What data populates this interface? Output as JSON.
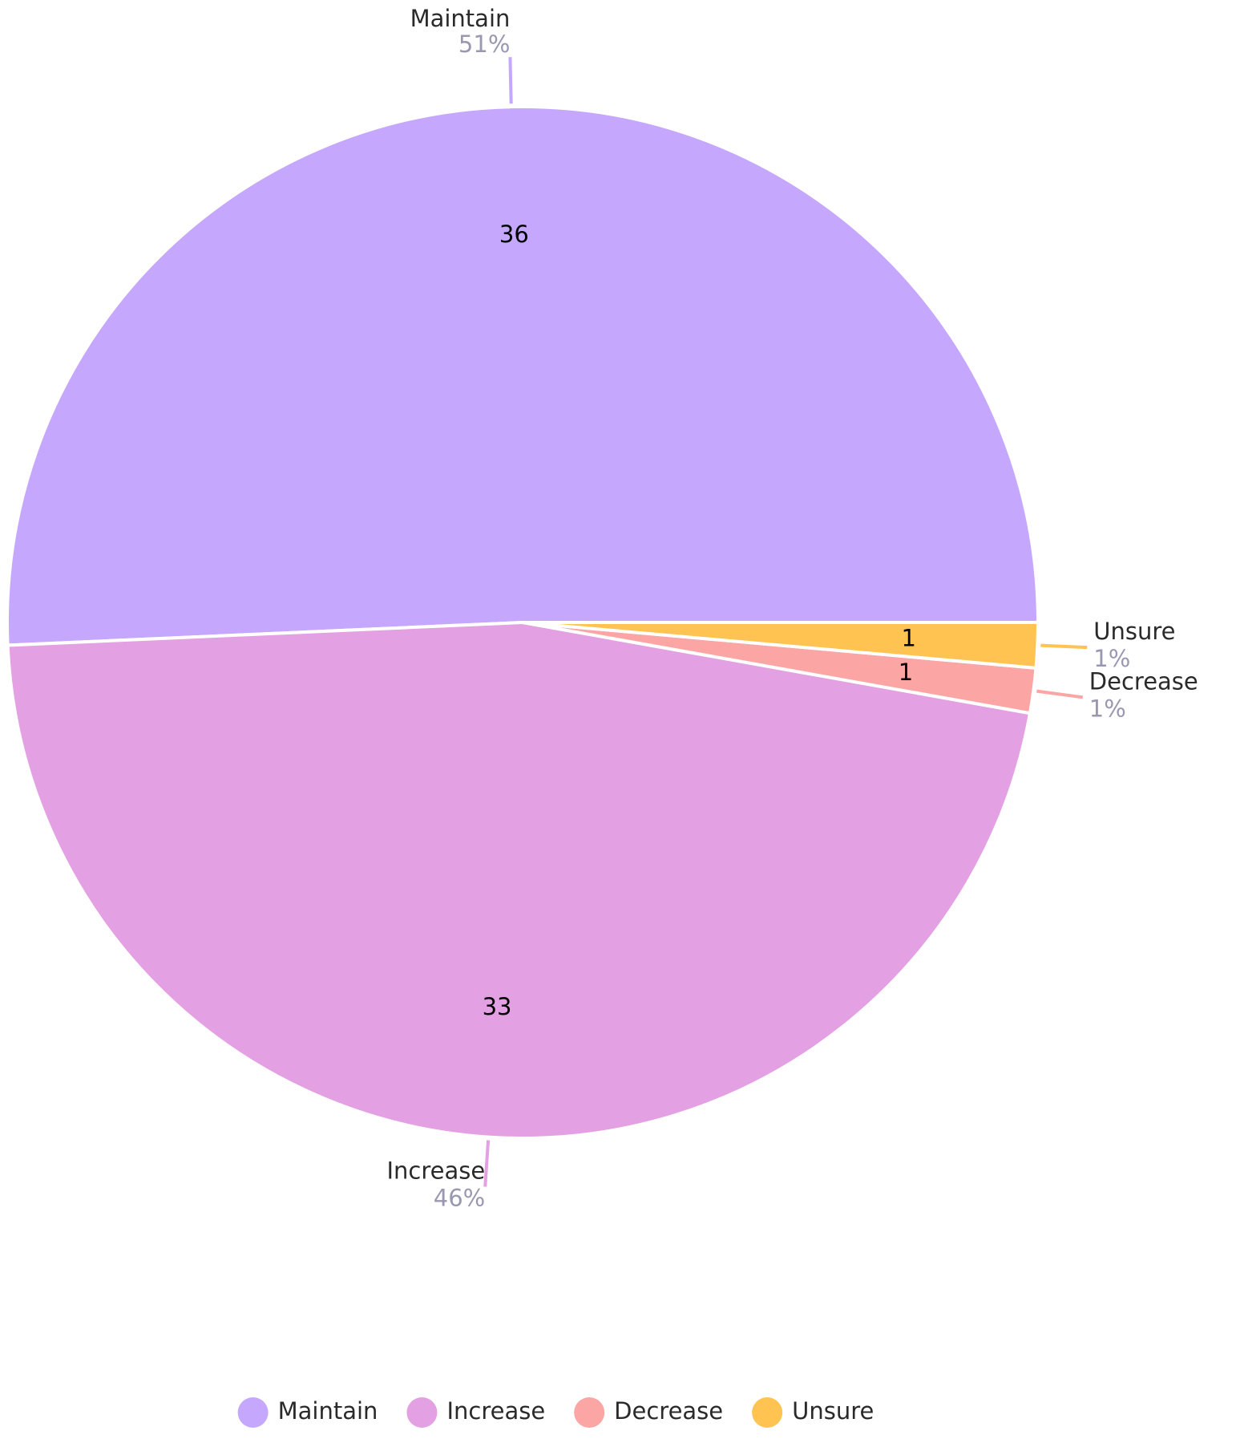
{
  "chart_data": {
    "type": "pie",
    "categories": [
      "Maintain",
      "Increase",
      "Decrease",
      "Unsure"
    ],
    "values": [
      36,
      33,
      1,
      1
    ],
    "percent_labels": [
      "51%",
      "46%",
      "1%",
      "1%"
    ],
    "colors": [
      "#c5a8fd",
      "#e3a0e2",
      "#fba6a4",
      "#fec350"
    ],
    "legend": "bottom"
  }
}
